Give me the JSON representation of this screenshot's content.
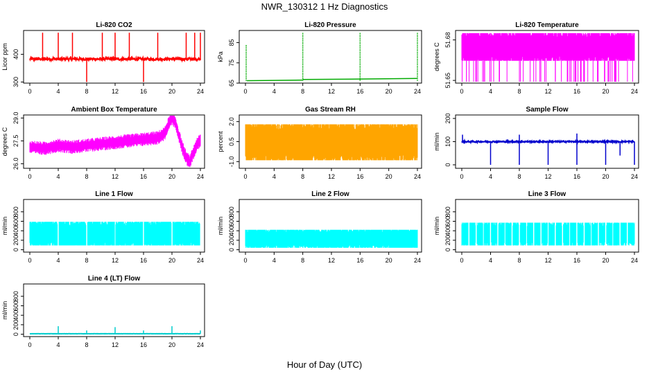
{
  "figure": {
    "title": "NWR_130312  1 Hz Diagnostics",
    "xlabel": "Hour of Day (UTC)"
  },
  "chart_data": [
    {
      "type": "line",
      "title": "Li-820 CO2",
      "ylabel": "Licor ppm",
      "color": "#ff0000",
      "xlim": [
        0,
        24
      ],
      "xticks": [
        0,
        4,
        8,
        12,
        16,
        20,
        24
      ],
      "ylim": [
        296,
        486
      ],
      "yticks": [
        300,
        400
      ],
      "baseline": 383,
      "noise": 5,
      "spikes": [
        {
          "x": 1.8,
          "y": 478
        },
        {
          "x": 4.0,
          "y": 478
        },
        {
          "x": 6.0,
          "y": 478
        },
        {
          "x": 8.0,
          "y": 300
        },
        {
          "x": 10.2,
          "y": 478
        },
        {
          "x": 12.0,
          "y": 478
        },
        {
          "x": 14.0,
          "y": 478
        },
        {
          "x": 16.0,
          "y": 300
        },
        {
          "x": 18.0,
          "y": 478
        },
        {
          "x": 22.0,
          "y": 478
        },
        {
          "x": 23.2,
          "y": 478
        },
        {
          "x": 24.0,
          "y": 478
        }
      ]
    },
    {
      "type": "line",
      "title": "Li-820 Pressure",
      "ylabel": "kPa",
      "color": "#00aa00",
      "xlim": [
        0,
        24
      ],
      "xticks": [
        0,
        4,
        8,
        12,
        16,
        20,
        24
      ],
      "ylim": [
        65,
        91
      ],
      "yticks": [
        65,
        75,
        85
      ],
      "segments": [
        {
          "x0": 0.2,
          "x1": 8.0,
          "y0": 66.2,
          "y1": 66.5
        },
        {
          "x0": 8.0,
          "x1": 16.0,
          "y0": 66.8,
          "y1": 67.0
        },
        {
          "x0": 16.0,
          "x1": 24.0,
          "y0": 67.0,
          "y1": 67.3
        }
      ],
      "spikes": [
        {
          "x": 0.1,
          "y": 84
        },
        {
          "x": 8.0,
          "y": 90
        },
        {
          "x": 16.0,
          "y": 90
        },
        {
          "x": 24.0,
          "y": 90
        }
      ]
    },
    {
      "type": "area",
      "title": "Li-820 Temperature",
      "ylabel": "degrees C",
      "color": "#ff00ff",
      "xlim": [
        0,
        24
      ],
      "xticks": [
        0,
        4,
        8,
        12,
        16,
        20,
        24
      ],
      "ylim": [
        51.648,
        51.687
      ],
      "yticks": [
        51.65,
        51.68
      ],
      "high": 51.685,
      "low": 51.6645
    },
    {
      "type": "line",
      "title": "Ambient Box Temperature",
      "ylabel": "degrees C",
      "color": "#ff00ff",
      "xlim": [
        0,
        24
      ],
      "xticks": [
        0,
        4,
        8,
        12,
        16,
        20,
        24
      ],
      "ylim": [
        25.7,
        29.2
      ],
      "yticks": [
        26.0,
        27.5,
        29.0
      ],
      "x": [
        0,
        2,
        4,
        6,
        8,
        10,
        12,
        14,
        16,
        18,
        19,
        19.5,
        20,
        20.5,
        21,
        21.5,
        22,
        22.5,
        23,
        23.5,
        24
      ],
      "y": [
        27.1,
        27.0,
        27.2,
        27.1,
        27.2,
        27.3,
        27.4,
        27.5,
        27.6,
        27.7,
        28.0,
        28.6,
        29.0,
        28.7,
        27.8,
        27.0,
        26.4,
        26.1,
        26.7,
        27.3,
        27.5
      ],
      "band": 0.45
    },
    {
      "type": "area",
      "title": "Gas Stream RH",
      "ylabel": "percent",
      "color": "#ffa500",
      "xlim": [
        0,
        24
      ],
      "xticks": [
        0,
        4,
        8,
        12,
        16,
        20,
        24
      ],
      "ylim": [
        -1.5,
        2.5
      ],
      "yticks": [
        -1.0,
        0.5,
        2.0
      ],
      "high": 1.8,
      "low": -0.9
    },
    {
      "type": "line",
      "title": "Sample Flow",
      "ylabel": "ml/min",
      "color": "#0000cd",
      "xlim": [
        0,
        24
      ],
      "xticks": [
        0,
        4,
        8,
        12,
        16,
        20,
        24
      ],
      "ylim": [
        -15,
        215
      ],
      "yticks": [
        0,
        100,
        200
      ],
      "baseline": 100,
      "noise": 3,
      "spikes": [
        {
          "x": 0.1,
          "y": 130
        },
        {
          "x": 4.0,
          "y": 0
        },
        {
          "x": 8.0,
          "y": 0
        },
        {
          "x": 8.0,
          "y": 130
        },
        {
          "x": 12.0,
          "y": 0
        },
        {
          "x": 16.0,
          "y": 0
        },
        {
          "x": 16.0,
          "y": 135
        },
        {
          "x": 20.0,
          "y": 0
        },
        {
          "x": 22.0,
          "y": 40
        },
        {
          "x": 24.0,
          "y": 0
        }
      ]
    },
    {
      "type": "area",
      "title": "Line 1 Flow",
      "ylabel": "ml/min",
      "color": "#00ffff",
      "xlim": [
        0,
        24
      ],
      "xticks": [
        0,
        4,
        8,
        12,
        16,
        20,
        24
      ],
      "ylim": [
        -50,
        1060
      ],
      "yticks": [
        0,
        200,
        400,
        600,
        800
      ],
      "high": 590,
      "low": 90,
      "gaps": [
        4.0,
        8.0,
        12.0,
        16.0,
        20.0,
        24.0
      ]
    },
    {
      "type": "area",
      "title": "Line 2 Flow",
      "ylabel": "ml/min",
      "color": "#00ffff",
      "xlim": [
        0,
        24
      ],
      "xticks": [
        0,
        4,
        8,
        12,
        16,
        20,
        24
      ],
      "ylim": [
        -50,
        1060
      ],
      "yticks": [
        0,
        200,
        400,
        600,
        800
      ],
      "high": 420,
      "low": 40,
      "gaps": []
    },
    {
      "type": "area",
      "title": "Line 3 Flow",
      "ylabel": "ml/min",
      "color": "#00ffff",
      "xlim": [
        0,
        24
      ],
      "xticks": [
        0,
        4,
        8,
        12,
        16,
        20,
        24
      ],
      "ylim": [
        -50,
        1060
      ],
      "yticks": [
        0,
        200,
        400,
        600,
        800
      ],
      "high": 570,
      "low": 90,
      "gaps": [
        1.0,
        2.0,
        3.0,
        4.0,
        5.0,
        6.0,
        7.0,
        8.0,
        9.0,
        10.0,
        11.0,
        12.0,
        13.0,
        14.0,
        15.0,
        16.0,
        17.0,
        18.0,
        19.0,
        20.0,
        21.0,
        22.0,
        23.0
      ]
    },
    {
      "type": "line",
      "title": "Line 4 (LT) Flow",
      "ylabel": "ml/min",
      "color": "#00cccc",
      "xlim": [
        0,
        24
      ],
      "xticks": [
        0,
        4,
        8,
        12,
        16,
        20,
        24
      ],
      "ylim": [
        -50,
        1060
      ],
      "yticks": [
        0,
        200,
        400,
        600,
        800
      ],
      "baseline": 10,
      "noise": 2,
      "spikes": [
        {
          "x": 4.0,
          "y": 170
        },
        {
          "x": 8.0,
          "y": 80
        },
        {
          "x": 12.0,
          "y": 150
        },
        {
          "x": 16.0,
          "y": 80
        },
        {
          "x": 20.0,
          "y": 170
        },
        {
          "x": 24.0,
          "y": 80
        }
      ]
    }
  ]
}
